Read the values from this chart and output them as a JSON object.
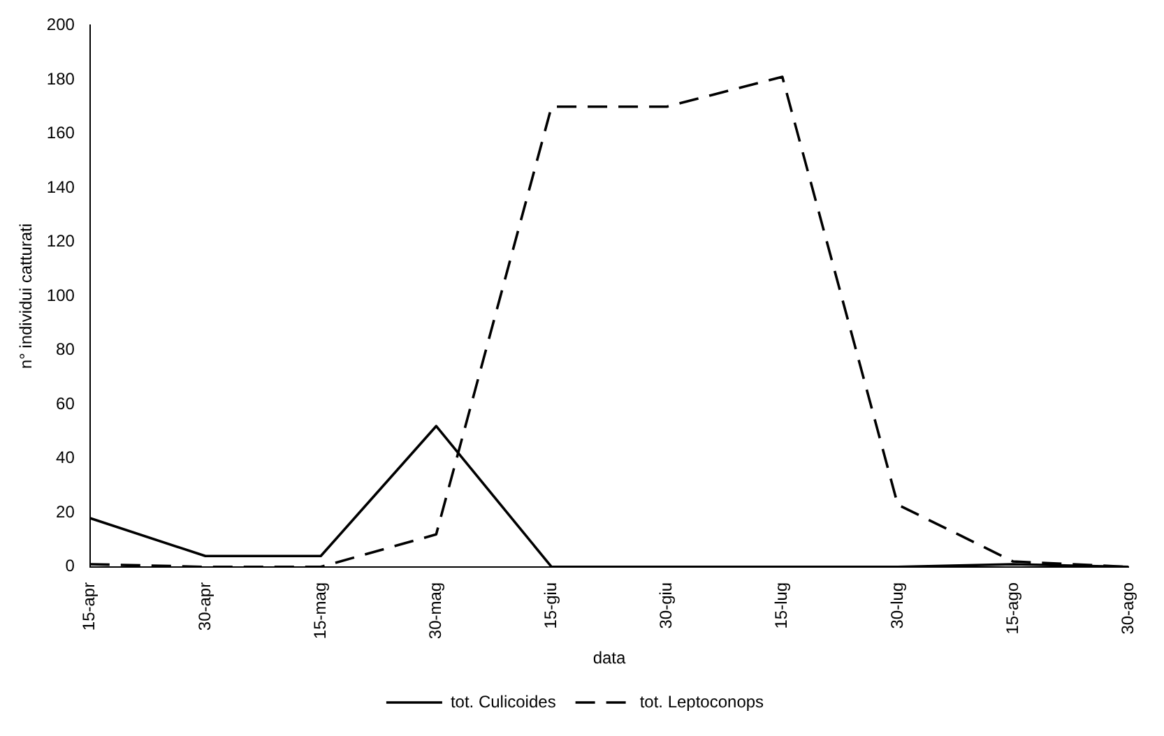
{
  "chart_data": {
    "type": "line",
    "xlabel": "data",
    "ylabel": "n° individui catturati",
    "categories": [
      "15-apr",
      "30-apr",
      "15-mag",
      "30-mag",
      "15-giu",
      "30-giu",
      "15-lug",
      "30-lug",
      "15-ago",
      "30-ago"
    ],
    "series": [
      {
        "name": "tot. Culicoides",
        "color": "#000000",
        "line_style": "solid",
        "values": [
          18,
          4,
          4,
          52,
          0,
          0,
          0,
          0,
          1,
          0
        ]
      },
      {
        "name": "tot. Leptoconops",
        "color": "#000000",
        "line_style": "dashed",
        "values": [
          1,
          0,
          0,
          12,
          170,
          170,
          181,
          23,
          2,
          0
        ]
      }
    ],
    "ylim": [
      0,
      200
    ],
    "yticks": [
      0,
      20,
      40,
      60,
      80,
      100,
      120,
      140,
      160,
      180,
      200
    ],
    "grid": false,
    "legend": "bottom",
    "marker": "none"
  }
}
